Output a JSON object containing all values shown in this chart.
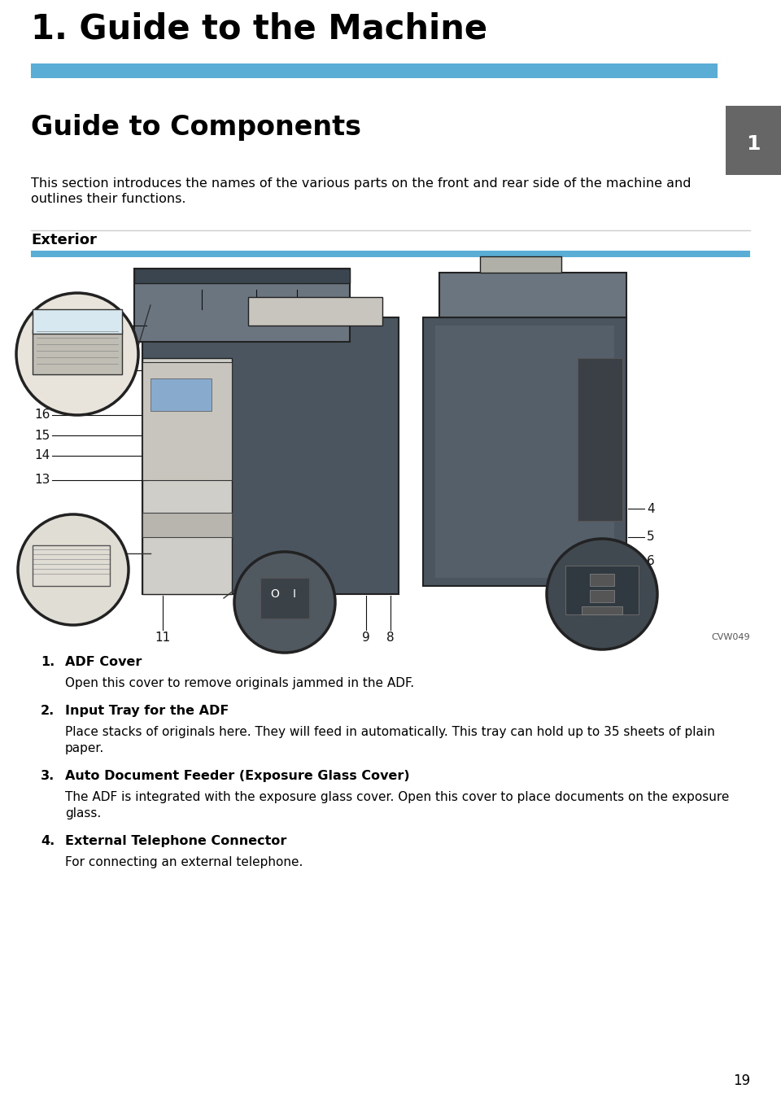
{
  "page_title": "1. Guide to the Machine",
  "blue_bar_color": "#5aadd4",
  "section_title": "Guide to Components",
  "tab_color": "#666666",
  "tab_number": "1",
  "intro_text_line1": "This section introduces the names of the various parts on the front and rear side of the machine and",
  "intro_text_line2": "outlines their functions.",
  "exterior_label": "Exterior",
  "exterior_bar_color": "#5aadd4",
  "image_label": "CVW049",
  "items": [
    {
      "number": "1.",
      "bold_text": "ADF Cover",
      "body": "Open this cover to remove originals jammed in the ADF."
    },
    {
      "number": "2.",
      "bold_text": "Input Tray for the ADF",
      "body": "Place stacks of originals here. They will feed in automatically. This tray can hold up to 35 sheets of plain\npaper."
    },
    {
      "number": "3.",
      "bold_text": "Auto Document Feeder (Exposure Glass Cover)",
      "body": "The ADF is integrated with the exposure glass cover. Open this cover to place documents on the exposure\nglass."
    },
    {
      "number": "4.",
      "bold_text": "External Telephone Connector",
      "body": "For connecting an external telephone."
    }
  ],
  "page_number": "19",
  "bg_color": "#ffffff",
  "text_color": "#000000"
}
